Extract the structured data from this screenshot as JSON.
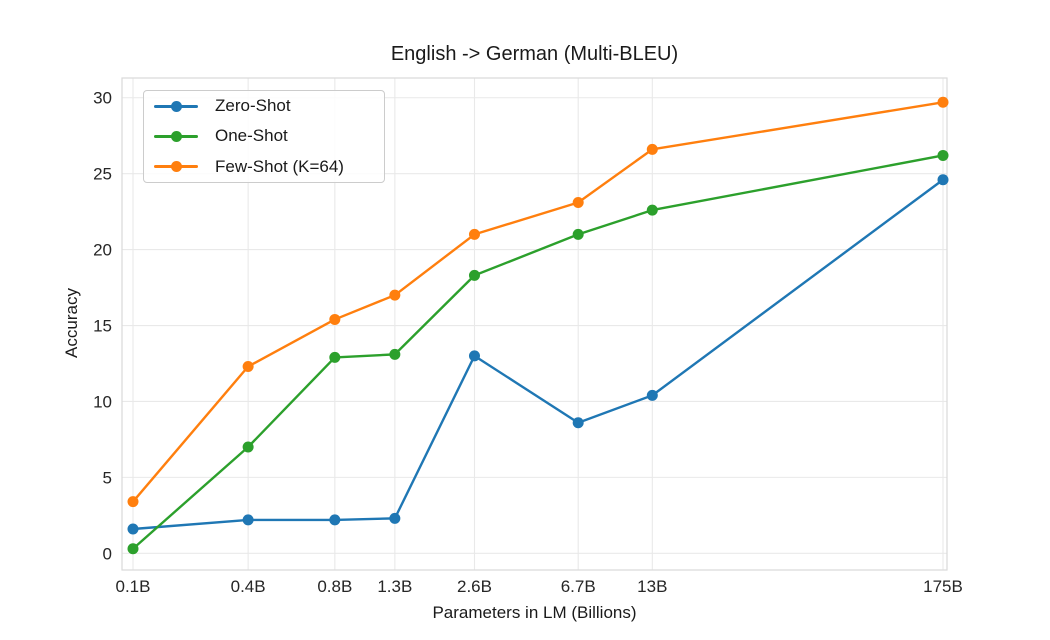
{
  "chart_data": {
    "type": "line",
    "title": "English -> German (Multi-BLEU)",
    "xlabel": "Parameters in LM (Billions)",
    "ylabel": "Accuracy",
    "x_scale": "log",
    "x_tick_labels": [
      "0.1B",
      "0.4B",
      "0.8B",
      "1.3B",
      "2.6B",
      "6.7B",
      "13B",
      "175B"
    ],
    "x_values_billions": [
      0.125,
      0.35,
      0.76,
      1.3,
      2.65,
      6.7,
      13,
      175
    ],
    "y_ticks": [
      0,
      5,
      10,
      15,
      20,
      25,
      30
    ],
    "ylim": [
      -1.1,
      31.3
    ],
    "grid": true,
    "legend_position": "upper-left",
    "series": [
      {
        "name": "Zero-Shot",
        "color": "#1f77b4",
        "values": [
          1.6,
          2.2,
          2.2,
          2.3,
          13.0,
          8.6,
          10.4,
          24.6
        ]
      },
      {
        "name": "One-Shot",
        "color": "#2ca02c",
        "values": [
          0.3,
          7.0,
          12.9,
          13.1,
          18.3,
          21.0,
          22.6,
          26.2
        ]
      },
      {
        "name": "Few-Shot (K=64)",
        "color": "#ff7f0e",
        "values": [
          3.4,
          12.3,
          15.4,
          17.0,
          21.0,
          23.1,
          26.6,
          29.7
        ]
      }
    ],
    "colors": {
      "grid": "#e9e9e9",
      "spine": "#d9d9d9",
      "text": "#262626",
      "background": "#ffffff"
    }
  }
}
